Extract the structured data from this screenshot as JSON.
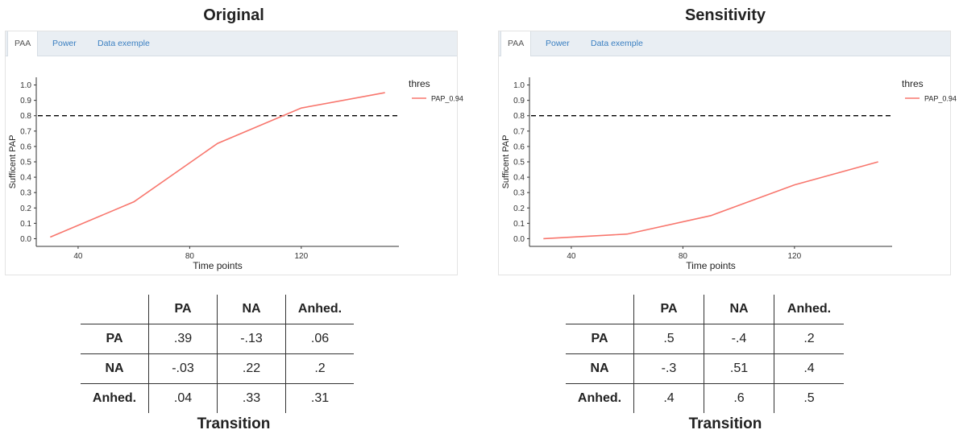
{
  "panels": [
    {
      "title": "Original",
      "tabs": [
        "PAA",
        "Power",
        "Data exemple"
      ],
      "table": {
        "columns": [
          "PA",
          "NA",
          "Anhed."
        ],
        "rows": [
          {
            "label": "PA",
            "values": [
              ".39",
              "-.13",
              ".06"
            ]
          },
          {
            "label": "NA",
            "values": [
              "-.03",
              ".22",
              ".2"
            ]
          },
          {
            "label": "Anhed.",
            "values": [
              ".04",
              ".33",
              ".31"
            ]
          }
        ]
      },
      "caption": "Transition"
    },
    {
      "title": "Sensitivity",
      "tabs": [
        "PAA",
        "Power",
        "Data exemple"
      ],
      "table": {
        "columns": [
          "PA",
          "NA",
          "Anhed."
        ],
        "rows": [
          {
            "label": "PA",
            "values": [
              ".5",
              "-.4",
              ".2"
            ]
          },
          {
            "label": "NA",
            "values": [
              "-.3",
              ".51",
              ".4"
            ]
          },
          {
            "label": "Anhed.",
            "values": [
              ".4",
              ".6",
              ".5"
            ]
          }
        ]
      },
      "caption": "Transition"
    }
  ],
  "chart_data": [
    {
      "type": "line",
      "xlabel": "Time points",
      "ylabel": "Sufficent PAP",
      "xlim": [
        25,
        155
      ],
      "ylim": [
        -0.05,
        1.05
      ],
      "x_ticks": [
        40,
        80,
        120
      ],
      "y_ticks": [
        "0.0",
        "0.1",
        "0.2",
        "0.3",
        "0.4",
        "0.5",
        "0.6",
        "0.7",
        "0.8",
        "0.9",
        "1.0"
      ],
      "legend_title": "thres",
      "legend_position": "top-right",
      "threshold": 0.8,
      "series": [
        {
          "name": "PAP_0.94",
          "color": "#f8766d",
          "x": [
            30,
            60,
            90,
            120,
            150
          ],
          "y": [
            0.01,
            0.24,
            0.62,
            0.85,
            0.95
          ]
        }
      ]
    },
    {
      "type": "line",
      "xlabel": "Time points",
      "ylabel": "Sufficent PAP",
      "xlim": [
        25,
        155
      ],
      "ylim": [
        -0.05,
        1.05
      ],
      "x_ticks": [
        40,
        80,
        120
      ],
      "y_ticks": [
        "0.0",
        "0.1",
        "0.2",
        "0.3",
        "0.4",
        "0.5",
        "0.6",
        "0.7",
        "0.8",
        "0.9",
        "1.0"
      ],
      "legend_title": "thres",
      "legend_position": "top-right",
      "threshold": 0.8,
      "series": [
        {
          "name": "PAP_0.94",
          "color": "#f8766d",
          "x": [
            30,
            60,
            90,
            120,
            150
          ],
          "y": [
            0.0,
            0.03,
            0.15,
            0.35,
            0.5
          ]
        }
      ]
    }
  ]
}
